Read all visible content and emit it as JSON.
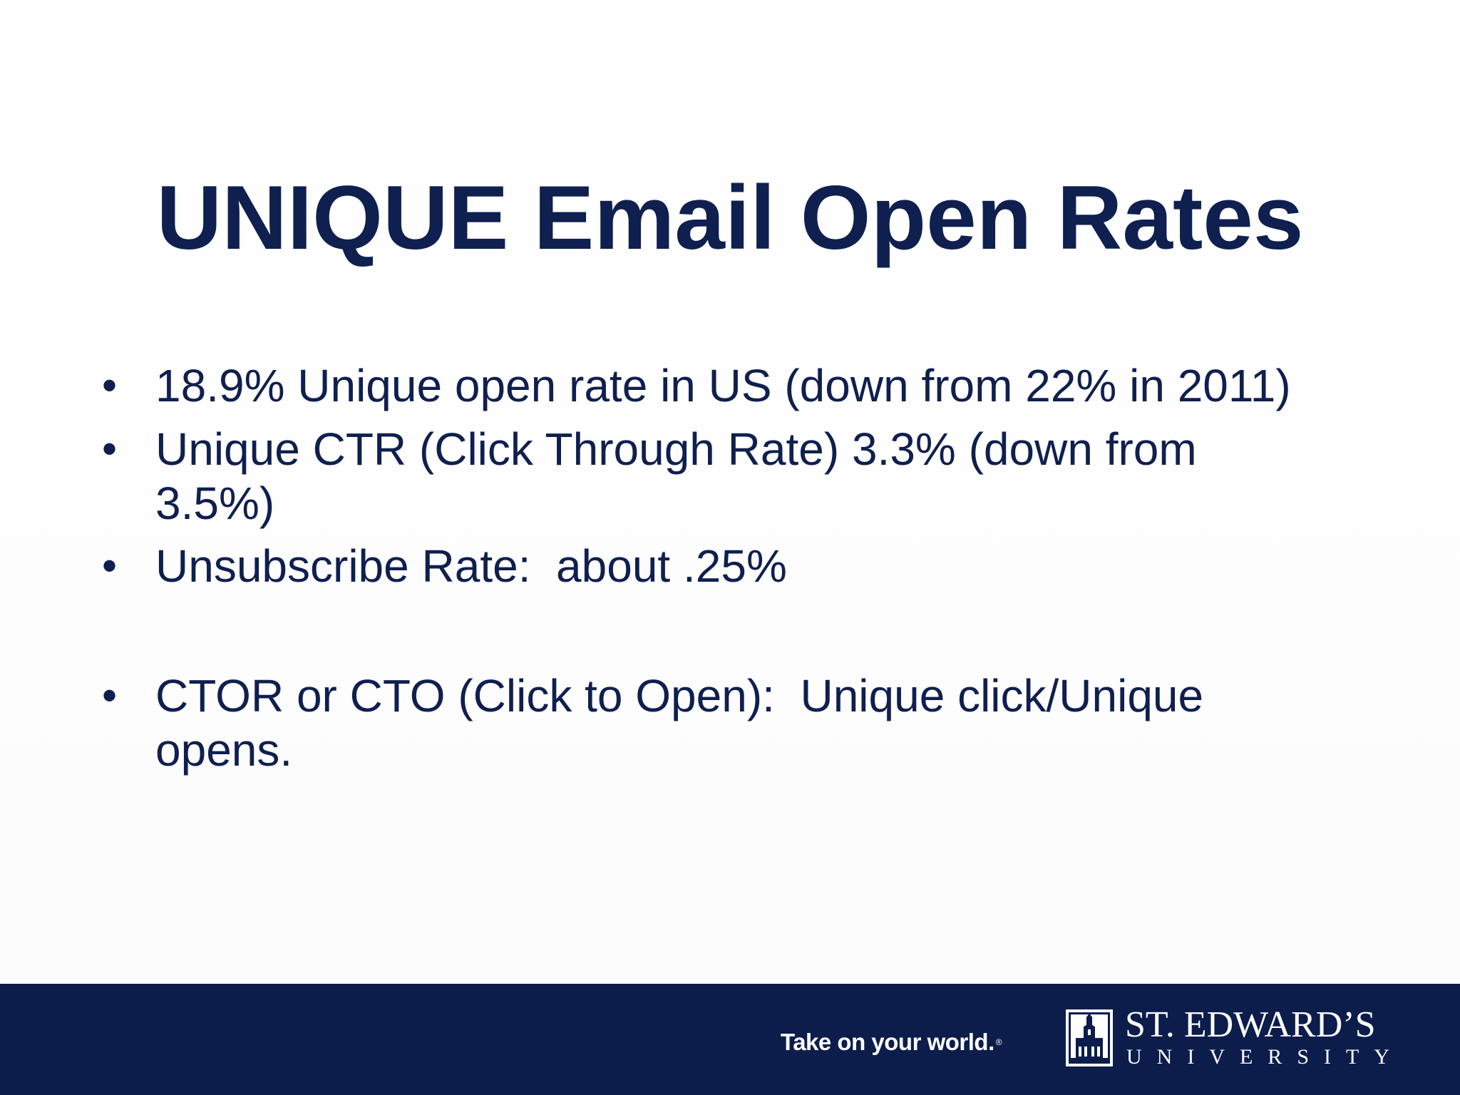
{
  "slide": {
    "title": "UNIQUE Email Open Rates",
    "bullets": [
      {
        "marker": "•",
        "text": "18.9% Unique open rate in US (down from 22% in 2011)"
      },
      {
        "marker": "•",
        "text": "Unique CTR (Click Through Rate) 3.3% (down from\n3.5%)"
      },
      {
        "marker": "•",
        "text": "Unsubscribe Rate:  about .25%"
      },
      {
        "marker": "•",
        "text": "CTOR or CTO (Click to Open):  Unique click/Unique\nopens."
      }
    ]
  },
  "footer": {
    "tagline": "Take on your world.",
    "tagline_mark": "®",
    "logo_icon": "university-tower-icon",
    "logo_name": "ST. EDWARD’S",
    "logo_sub": "UNIVERSITY",
    "background_color": "#0c1d4c",
    "text_color": "#ffffff"
  },
  "colors": {
    "title": "#0f1f4f",
    "body_text": "#0f1f4f",
    "background": "#ffffff"
  }
}
